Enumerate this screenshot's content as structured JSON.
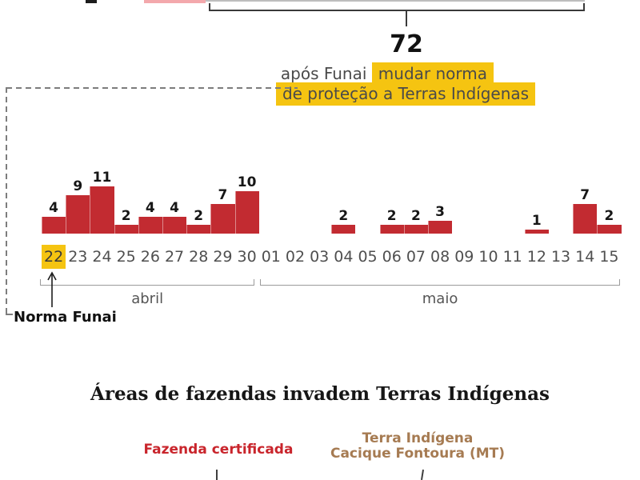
{
  "header": {
    "big_number": "72",
    "caption_line1_plain": "após Funai ",
    "caption_line1_highlight": "mudar norma",
    "caption_line2_highlight": "de proteção a Terras Indígenas"
  },
  "chart_data": {
    "type": "bar",
    "categories": [
      "22",
      "23",
      "24",
      "25",
      "26",
      "27",
      "28",
      "29",
      "30",
      "01",
      "02",
      "03",
      "04",
      "05",
      "06",
      "07",
      "08",
      "09",
      "10",
      "11",
      "12",
      "13",
      "14",
      "15"
    ],
    "values": [
      4,
      9,
      11,
      2,
      4,
      4,
      2,
      7,
      10,
      0,
      0,
      0,
      2,
      0,
      2,
      2,
      3,
      0,
      0,
      0,
      1,
      0,
      7,
      2
    ],
    "month_groups": [
      {
        "label": "abril",
        "count": 9
      },
      {
        "label": "maio",
        "count": 15
      }
    ],
    "highlighted_category": "22",
    "annotation_label": "Norma Funai",
    "total_callout": "72",
    "ylim": [
      0,
      11
    ],
    "colors": {
      "bar": "#c22b31",
      "highlight": "#f5c411",
      "axis_label": "#4f4f4f",
      "bracket": "#9b9b9b"
    }
  },
  "section_farms": {
    "title": "Áreas de fazendas invadem Terras Indígenas",
    "legend": [
      {
        "label": "Fazenda certificada",
        "color": "#c9252c"
      },
      {
        "label_line1": "Terra Indígena",
        "label_line2": "Cacique Fontoura (MT)",
        "color": "#a67b52"
      }
    ]
  },
  "decor": {
    "pink_fragment_color": "#f3a8ac",
    "gray_fragment_color": "#bdbdbd"
  }
}
